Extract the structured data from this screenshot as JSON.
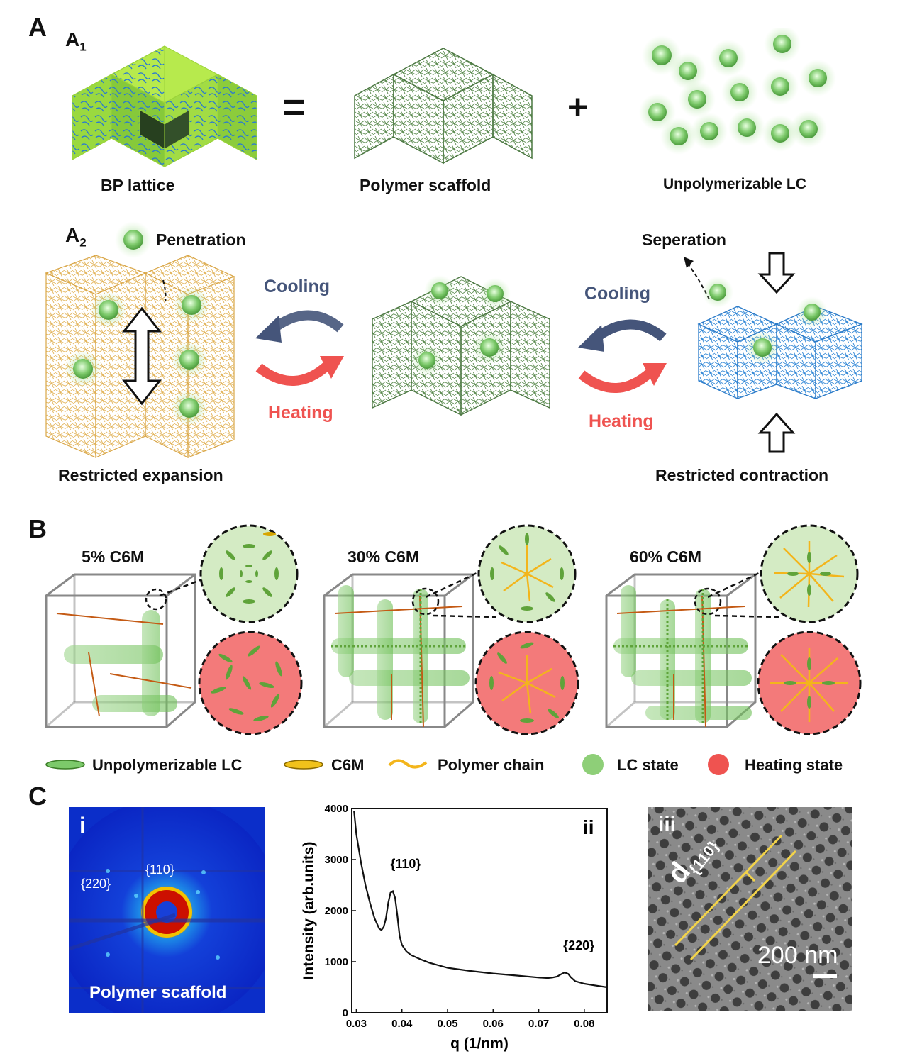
{
  "panelA": {
    "letter": "A",
    "a1_label": "A",
    "a1_sub": "1",
    "a2_label": "A",
    "a2_sub": "2",
    "eq_symbol": "=",
    "plus_symbol": "+",
    "caption_lattice": "BP lattice",
    "caption_scaffold": "Polymer scaffold",
    "caption_lc": "Unpolymerizable LC",
    "penetration": "Penetration",
    "seperation": "Seperation",
    "cooling_left": "Cooling",
    "heating_left": "Heating",
    "cooling_right": "Cooling",
    "heating_right": "Heating",
    "restricted_expansion": "Restricted expansion",
    "restricted_contraction": "Restricted contraction"
  },
  "panelB": {
    "letter": "B",
    "title_5": "5% C6M",
    "title_30": "30% C6M",
    "title_60": "60% C6M",
    "legend": [
      {
        "label": "Unpolymerizable LC"
      },
      {
        "label": "C6M"
      },
      {
        "label": "Polymer chain"
      },
      {
        "label": "LC state"
      },
      {
        "label": "Heating state"
      }
    ]
  },
  "panelC": {
    "letter": "C",
    "i_label": "i",
    "i_caption": "Polymer scaffold",
    "i_peak_220": "{220}",
    "i_peak_110": "{110}",
    "ii_label": "ii",
    "iii_label": "iii",
    "iii_d": "d",
    "iii_d_sub": "{110}",
    "iii_scale": "200 nm"
  },
  "colors": {
    "lc_green": "#7cc96a",
    "scaffold_green": "#5a8a4e",
    "scaffold_gold": "#e2b45a",
    "scaffold_blue": "#2f86d6",
    "heat_red": "#ef5350",
    "cool_navy": "#45557a",
    "polymer_yellow": "#f3b51b"
  },
  "chart_data": {
    "type": "line",
    "title": "",
    "xlabel": "q (1/nm)",
    "ylabel": "Intensity (arb.units)",
    "xlim": [
      0.029,
      0.085
    ],
    "ylim": [
      0,
      4000
    ],
    "xticks": [
      "0.03",
      "0.04",
      "0.05",
      "0.06",
      "0.07",
      "0.08"
    ],
    "yticks": [
      "0",
      "1000",
      "2000",
      "3000",
      "4000"
    ],
    "annotations": [
      {
        "text": "{110}",
        "x": 0.038,
        "y": 2500
      },
      {
        "text": "{220}",
        "x": 0.076,
        "y": 900
      }
    ],
    "series": [
      {
        "x": [
          0.0295,
          0.03,
          0.031,
          0.032,
          0.033,
          0.034,
          0.035,
          0.0355,
          0.036,
          0.0365,
          0.037,
          0.0375,
          0.038,
          0.0385,
          0.039,
          0.0395,
          0.04,
          0.041,
          0.042,
          0.044,
          0.046,
          0.048,
          0.05,
          0.055,
          0.06,
          0.065,
          0.07,
          0.072,
          0.073,
          0.074,
          0.075,
          0.0757,
          0.0765,
          0.077,
          0.078,
          0.08,
          0.082,
          0.085
        ],
        "y": [
          3950,
          3500,
          2950,
          2500,
          2150,
          1850,
          1650,
          1620,
          1680,
          1850,
          2150,
          2350,
          2380,
          2250,
          1900,
          1500,
          1330,
          1200,
          1130,
          1050,
          980,
          930,
          880,
          820,
          770,
          730,
          690,
          680,
          690,
          710,
          760,
          790,
          760,
          700,
          620,
          570,
          540,
          500
        ]
      }
    ]
  }
}
